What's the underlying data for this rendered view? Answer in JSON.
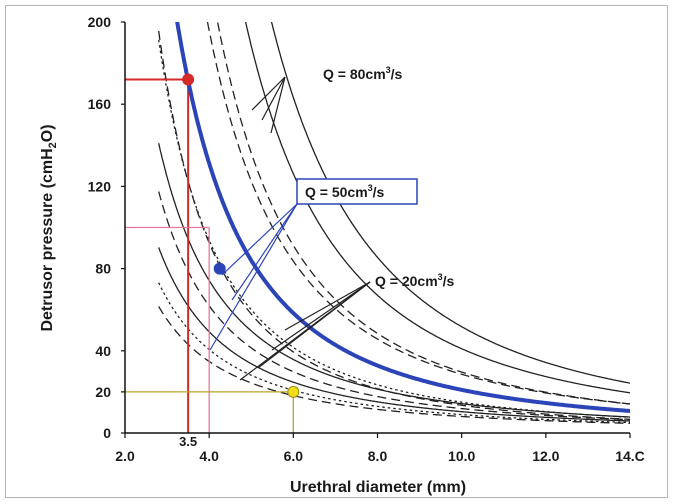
{
  "chart_data": {
    "type": "line",
    "xlabel": "Urethral diameter (mm)",
    "ylabel_main": "Detrusor pressure (cmH",
    "ylabel_sub": "2",
    "ylabel_end": "O)",
    "xlim": [
      2.0,
      14.0
    ],
    "ylim": [
      0,
      200
    ],
    "x_ticks": [
      "2.0",
      "4.0",
      "6.0",
      "8.0",
      "10.0",
      "12.0",
      "14.C"
    ],
    "x_tick_values": [
      2,
      4,
      6,
      8,
      10,
      12,
      14
    ],
    "y_ticks": [
      "200",
      "160",
      "120",
      "80",
      "40",
      "20",
      "0"
    ],
    "y_tick_values": [
      200,
      160,
      120,
      80,
      40,
      20,
      0
    ],
    "extra_x_label": "3.5",
    "extra_x_value": 3.5,
    "annotations": [
      {
        "prefix": "Q = 80cm",
        "sup": "3",
        "suffix": "/s"
      },
      {
        "prefix": "Q = 50cm",
        "sup": "3",
        "suffix": "/s"
      },
      {
        "prefix": "Q = 20cm",
        "sup": "3",
        "suffix": "/s"
      }
    ],
    "highlight_series": {
      "color": "#2b44b8",
      "k": 2100,
      "n": 2.0,
      "markers": [
        {
          "x": 3.5,
          "y": 172,
          "color": "#d42a2a"
        },
        {
          "x": 4.25,
          "y": 80,
          "color": "#2b44b8"
        },
        {
          "x": 6.0,
          "y": 20,
          "color": "#f1dd1a"
        }
      ]
    },
    "background_curves": [
      {
        "k": 9200,
        "n": 2.25,
        "style": "solid"
      },
      {
        "k": 6500,
        "n": 2.2,
        "style": "solid"
      },
      {
        "k": 4700,
        "n": 2.2,
        "style": "dashed"
      },
      {
        "k": 3600,
        "n": 2.1,
        "style": "dashed"
      },
      {
        "k": 1700,
        "n": 2.1,
        "style": "dashed"
      },
      {
        "k": 1500,
        "n": 2.0,
        "style": "dotted"
      },
      {
        "k": 900,
        "n": 1.8,
        "style": "solid"
      },
      {
        "k": 750,
        "n": 1.8,
        "style": "dashed"
      },
      {
        "k": 520,
        "n": 1.7,
        "style": "solid"
      },
      {
        "k": 400,
        "n": 1.65,
        "style": "dotted"
      },
      {
        "k": 320,
        "n": 1.6,
        "style": "dashed"
      }
    ],
    "reference_lines": [
      {
        "y": 172,
        "x": 3.5,
        "color": "#d42a2a"
      },
      {
        "y": 100,
        "x": 4.0,
        "color": "#e87a98"
      },
      {
        "y": 20,
        "x": 6.0,
        "color": "#b8a42a"
      }
    ],
    "grid": false
  }
}
